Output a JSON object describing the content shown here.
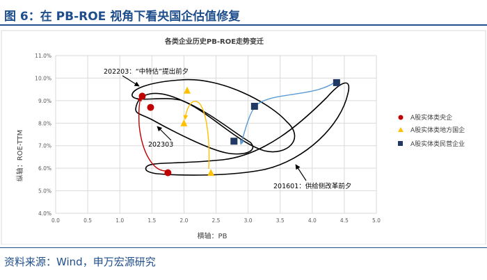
{
  "figure_title": "图 6：在 PB-ROE 视角下看央国企估值修复",
  "source": "资料来源：Wind，申万宏源研究",
  "colors": {
    "brand": "#1f4e8c",
    "soe": "#c00000",
    "local": "#ffc000",
    "private": "#1f3864",
    "arrow_blue": "#5b9bd5"
  },
  "chart_data": {
    "type": "scatter",
    "title": "各类企业历史PB-ROE走势变迁",
    "xlabel": "横轴：PB",
    "ylabel": "纵轴：ROE-TTM",
    "xlim": [
      0.0,
      5.0
    ],
    "ylim": [
      4.0,
      11.0
    ],
    "x_ticks": [
      "0.0",
      "0.5",
      "1.0",
      "1.5",
      "2.0",
      "2.5",
      "3.0",
      "3.5",
      "4.0",
      "4.5",
      "5.0"
    ],
    "y_ticks": [
      "4.0%",
      "5.0%",
      "6.0%",
      "7.0%",
      "8.0%",
      "9.0%",
      "10.0%",
      "11.0%"
    ],
    "grid": true,
    "legend_position": "right",
    "series": [
      {
        "name": "A股实体类央企",
        "marker": "circle",
        "color": "#c00000",
        "points": [
          {
            "x": 1.35,
            "y": 9.2
          },
          {
            "x": 1.48,
            "y": 8.7
          },
          {
            "x": 1.75,
            "y": 5.8
          }
        ]
      },
      {
        "name": "A股实体类地方国企",
        "marker": "triangle",
        "color": "#ffc000",
        "points": [
          {
            "x": 2.05,
            "y": 9.45
          },
          {
            "x": 2.0,
            "y": 8.0
          },
          {
            "x": 2.42,
            "y": 5.8
          }
        ]
      },
      {
        "name": "A股实体类民营企业",
        "marker": "square",
        "color": "#1f3864",
        "points": [
          {
            "x": 4.38,
            "y": 9.8
          },
          {
            "x": 3.1,
            "y": 8.75
          },
          {
            "x": 2.78,
            "y": 7.2
          }
        ]
      }
    ],
    "annotations": [
      {
        "text": "202203：“中特估”提出前夕"
      },
      {
        "text": "202303"
      },
      {
        "text": "201601：供给侧改革前夕"
      }
    ]
  }
}
